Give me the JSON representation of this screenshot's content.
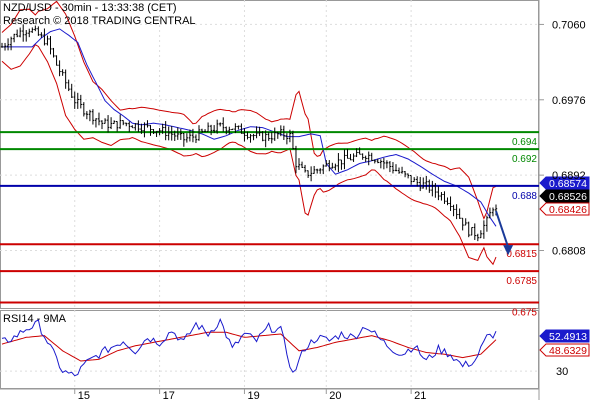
{
  "header": {
    "title": "NZD/USD - 30min - 13:33:38 (CET)",
    "subtitle": "Research © 2018 TRADING CENTRAL"
  },
  "colors": {
    "candle": "#000000",
    "bollinger": "#cc0000",
    "moving_average": "#1a1acc",
    "resistance": "#008800",
    "pivot": "#0000aa",
    "support": "#cc0000",
    "arrow": "#1a3a99",
    "rsi": "#1a1acc",
    "rsi_ma": "#cc0000"
  },
  "chart_data": [
    {
      "type": "candlestick",
      "ylim": [
        0.6745,
        0.7085
      ],
      "y_ticks": [
        "0.7060",
        "0.6976",
        "0.6892",
        "0.6808"
      ],
      "x_ticks": [
        "15",
        "17",
        "19",
        "20",
        "21"
      ],
      "levels": [
        {
          "label": "0.694",
          "value": 0.694,
          "kind": "resistance"
        },
        {
          "label": "0.692",
          "value": 0.6921,
          "kind": "resistance"
        },
        {
          "label": "0.688",
          "value": 0.688,
          "kind": "pivot"
        },
        {
          "label": "0.6815",
          "value": 0.6815,
          "kind": "support"
        },
        {
          "label": "0.6785",
          "value": 0.6785,
          "kind": "support"
        },
        {
          "label": "0.675",
          "value": 0.675,
          "kind": "support"
        }
      ],
      "price_tags": [
        {
          "label": "0.68574",
          "value": 0.68574,
          "style": "blue"
        },
        {
          "label": "0.68526",
          "value": 0.68526,
          "style": "black"
        },
        {
          "label": "0.68426",
          "value": 0.68426,
          "style": "red"
        }
      ],
      "price_path": [
        [
          0,
          0.7035
        ],
        [
          3,
          0.7045
        ],
        [
          6,
          0.7052
        ],
        [
          9,
          0.7055
        ],
        [
          12,
          0.7048
        ],
        [
          15,
          0.704
        ],
        [
          18,
          0.7015
        ],
        [
          21,
          0.6995
        ],
        [
          24,
          0.6975
        ],
        [
          27,
          0.6965
        ],
        [
          30,
          0.6958
        ],
        [
          33,
          0.695
        ],
        [
          36,
          0.6948
        ],
        [
          40,
          0.695
        ],
        [
          44,
          0.6948
        ],
        [
          48,
          0.6945
        ],
        [
          52,
          0.6942
        ],
        [
          56,
          0.6938
        ],
        [
          60,
          0.6932
        ],
        [
          64,
          0.6936
        ],
        [
          68,
          0.6942
        ],
        [
          72,
          0.6946
        ],
        [
          76,
          0.6945
        ],
        [
          80,
          0.694
        ],
        [
          84,
          0.6935
        ],
        [
          88,
          0.6935
        ],
        [
          92,
          0.6938
        ],
        [
          95,
          0.6936
        ],
        [
          97,
          0.6905
        ],
        [
          100,
          0.6893
        ],
        [
          104,
          0.6898
        ],
        [
          108,
          0.6905
        ],
        [
          112,
          0.6908
        ],
        [
          116,
          0.6912
        ],
        [
          120,
          0.6915
        ],
        [
          124,
          0.691
        ],
        [
          128,
          0.6902
        ],
        [
          132,
          0.6893
        ],
        [
          136,
          0.6885
        ],
        [
          140,
          0.688
        ],
        [
          144,
          0.6872
        ],
        [
          148,
          0.6862
        ],
        [
          151,
          0.6845
        ],
        [
          154,
          0.683
        ],
        [
          157,
          0.6826
        ],
        [
          160,
          0.684
        ],
        [
          162,
          0.6857
        ],
        [
          163,
          0.6852
        ]
      ],
      "forecast_arrow": [
        [
          163,
          0.6852
        ],
        [
          167,
          0.6805
        ]
      ]
    },
    {
      "type": "line",
      "title": "RSI14 - 9MA",
      "ylim": [
        20,
        65
      ],
      "y_ticks": [
        "30"
      ],
      "tags": [
        {
          "label": "52.4913",
          "value": 52.4913,
          "style": "blue"
        },
        {
          "label": "48.6329",
          "value": 48.6329,
          "style": "red"
        }
      ],
      "rsi": [
        [
          0,
          47
        ],
        [
          4,
          50
        ],
        [
          8,
          55
        ],
        [
          12,
          58
        ],
        [
          16,
          44
        ],
        [
          20,
          30
        ],
        [
          24,
          27
        ],
        [
          28,
          35
        ],
        [
          32,
          40
        ],
        [
          36,
          44
        ],
        [
          40,
          48
        ],
        [
          44,
          42
        ],
        [
          48,
          50
        ],
        [
          52,
          47
        ],
        [
          56,
          54
        ],
        [
          60,
          47
        ],
        [
          64,
          58
        ],
        [
          68,
          52
        ],
        [
          72,
          60
        ],
        [
          76,
          43
        ],
        [
          80,
          52
        ],
        [
          84,
          48
        ],
        [
          88,
          56
        ],
        [
          92,
          54
        ],
        [
          96,
          28
        ],
        [
          100,
          44
        ],
        [
          104,
          50
        ],
        [
          108,
          48
        ],
        [
          112,
          52
        ],
        [
          116,
          50
        ],
        [
          120,
          57
        ],
        [
          124,
          50
        ],
        [
          128,
          44
        ],
        [
          132,
          40
        ],
        [
          136,
          45
        ],
        [
          140,
          36
        ],
        [
          144,
          43
        ],
        [
          148,
          40
        ],
        [
          152,
          33
        ],
        [
          156,
          36
        ],
        [
          160,
          50
        ],
        [
          163,
          52.5
        ]
      ],
      "rsi_ma": [
        [
          0,
          46
        ],
        [
          8,
          50
        ],
        [
          14,
          51
        ],
        [
          20,
          42
        ],
        [
          26,
          36
        ],
        [
          32,
          37
        ],
        [
          38,
          42
        ],
        [
          44,
          45
        ],
        [
          50,
          47
        ],
        [
          56,
          49
        ],
        [
          62,
          51
        ],
        [
          68,
          53
        ],
        [
          74,
          53
        ],
        [
          80,
          50
        ],
        [
          86,
          51
        ],
        [
          92,
          52
        ],
        [
          98,
          42
        ],
        [
          104,
          44
        ],
        [
          110,
          47
        ],
        [
          116,
          49
        ],
        [
          122,
          51
        ],
        [
          128,
          48
        ],
        [
          134,
          44
        ],
        [
          140,
          41
        ],
        [
          146,
          40
        ],
        [
          152,
          38
        ],
        [
          158,
          40
        ],
        [
          163,
          48.6
        ]
      ]
    }
  ]
}
